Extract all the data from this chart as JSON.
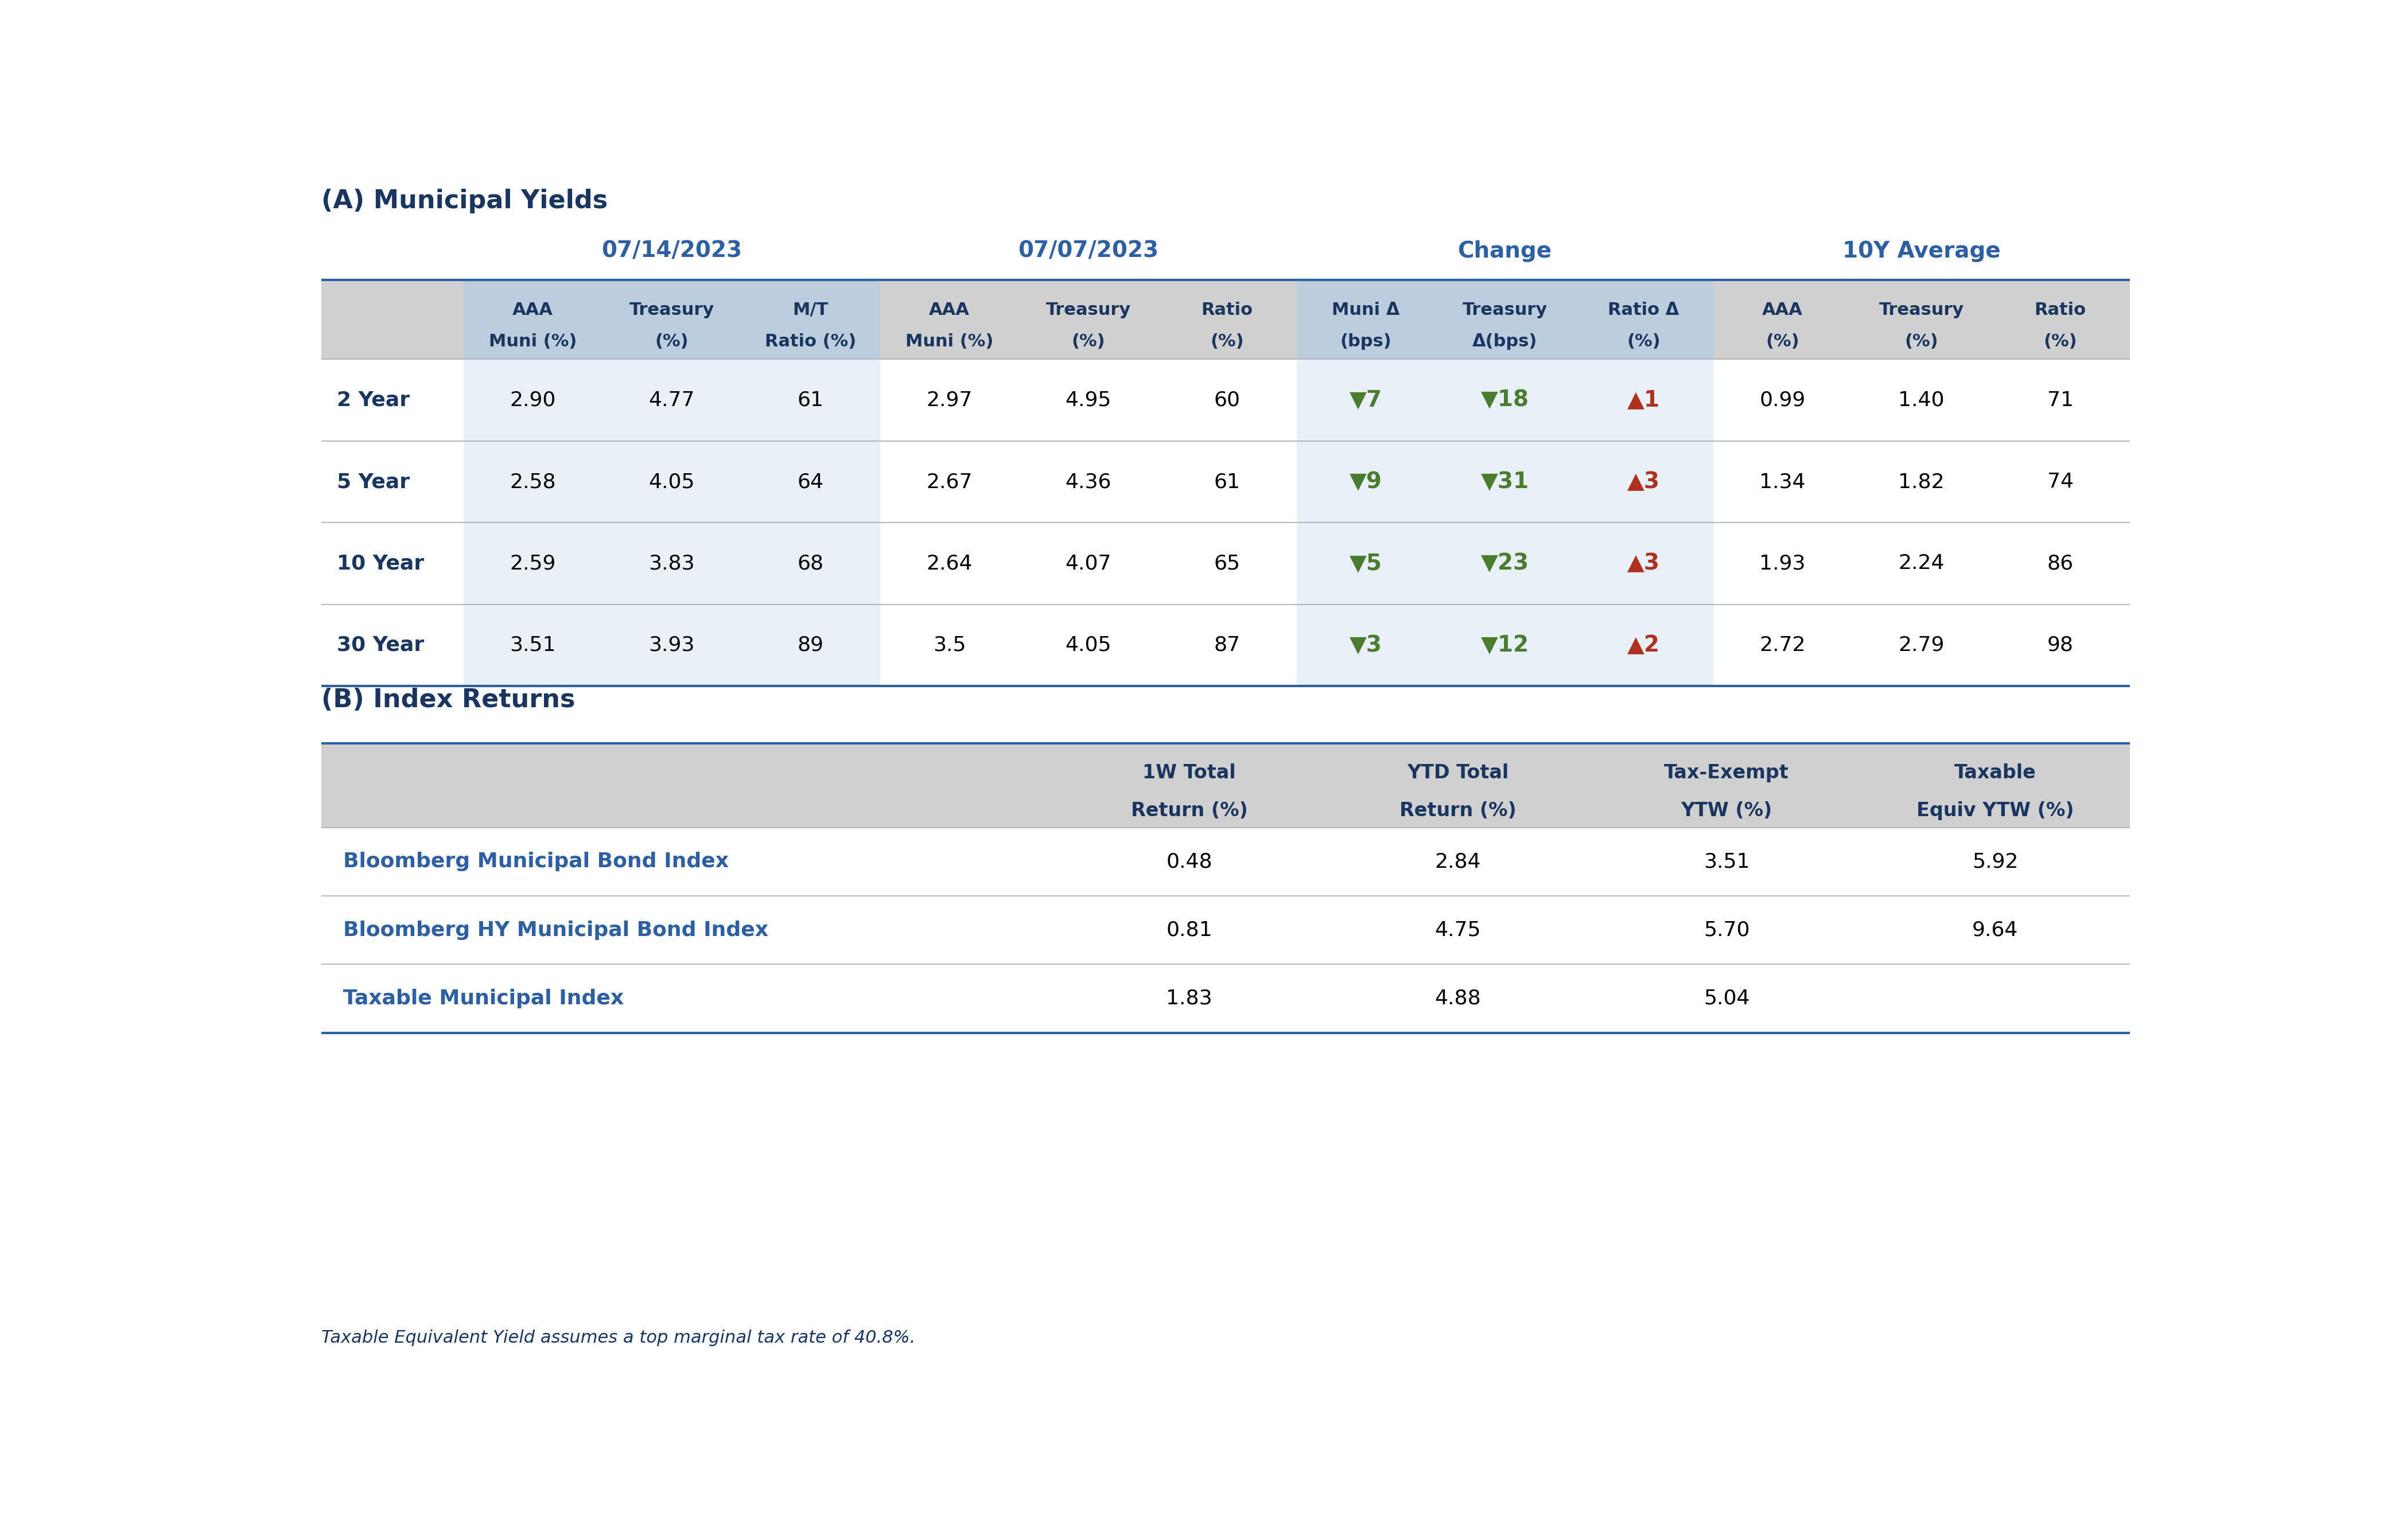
{
  "title_a": "(A) Municipal Yields",
  "title_b": "(B) Index Returns",
  "footnote": "Taxable Equivalent Yield assumes a top marginal tax rate of 40.8%.",
  "col_group_labels": [
    "07/14/2023",
    "07/07/2023",
    "Change",
    "10Y Average"
  ],
  "sub_headers_line1": [
    "",
    "AAA",
    "Treasury",
    "M/T",
    "AAA",
    "Treasury",
    "Ratio",
    "Muni Δ",
    "Treasury",
    "Ratio Δ",
    "AAA",
    "Treasury",
    "Ratio"
  ],
  "sub_headers_line2": [
    "",
    "Muni (%)",
    "(%)",
    "Ratio (%)",
    "Muni (%)",
    "(%)",
    "(%)",
    "(bps)",
    "Δ(bps)",
    "(%)",
    "(%)",
    "(%)",
    "(%)"
  ],
  "row_labels": [
    "2 Year",
    "5 Year",
    "10 Year",
    "30 Year"
  ],
  "data": [
    [
      "2.90",
      "4.77",
      "61",
      "2.97",
      "4.95",
      "60",
      "-7",
      "-18",
      "1",
      "0.99",
      "1.40",
      "71"
    ],
    [
      "2.58",
      "4.05",
      "64",
      "2.67",
      "4.36",
      "61",
      "-9",
      "-31",
      "3",
      "1.34",
      "1.82",
      "74"
    ],
    [
      "2.59",
      "3.83",
      "68",
      "2.64",
      "4.07",
      "65",
      "-5",
      "-23",
      "3",
      "1.93",
      "2.24",
      "86"
    ],
    [
      "3.51",
      "3.93",
      "89",
      "3.5",
      "4.05",
      "87",
      "-3",
      "-12",
      "2",
      "2.72",
      "2.79",
      "98"
    ]
  ],
  "index_sub_headers_line1": [
    "",
    "1W Total",
    "YTD Total",
    "Tax-Exempt",
    "Taxable"
  ],
  "index_sub_headers_line2": [
    "",
    "Return (%)",
    "Return (%)",
    "YTW (%)",
    "Equiv YTW (%)"
  ],
  "index_rows": [
    [
      "Bloomberg Municipal Bond Index",
      "0.48",
      "2.84",
      "3.51",
      "5.92"
    ],
    [
      "Bloomberg HY Municipal Bond Index",
      "0.81",
      "4.75",
      "5.70",
      "9.64"
    ],
    [
      "Taxable Municipal Index",
      "1.83",
      "4.88",
      "5.04",
      ""
    ]
  ],
  "dark_blue": "#1a3560",
  "medium_blue": "#2e5fa3",
  "white_bg": "#ffffff",
  "alt_row_bg": "#e8f0f8",
  "green_arrow": "#4a7c2f",
  "red_arrow": "#b03020",
  "header_bg": "#d0d0d0",
  "header_band_bg": "#bccede",
  "divider_color": "#aaaaaa",
  "section_divider_color": "#2e5fa3"
}
